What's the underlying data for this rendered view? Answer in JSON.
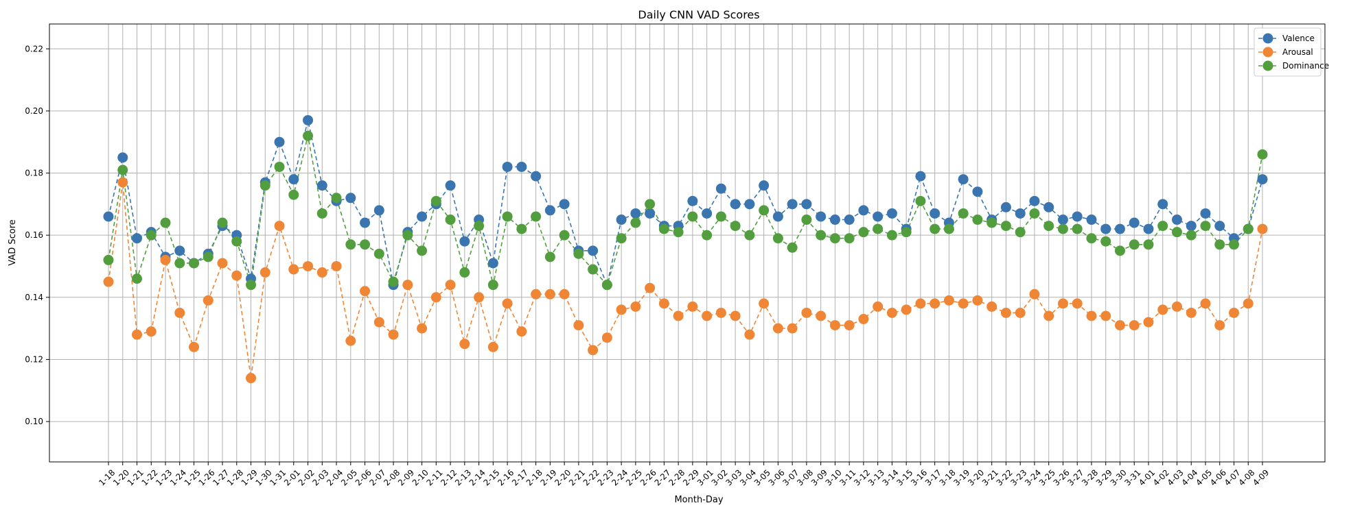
{
  "chart_data": {
    "type": "line",
    "title": "Daily CNN VAD Scores",
    "xlabel": "Month-Day",
    "ylabel": "VAD Score",
    "ylim": [
      0.087,
      0.228
    ],
    "yticks": [
      0.1,
      0.12,
      0.14,
      0.16,
      0.18,
      0.2,
      0.22
    ],
    "ytick_labels": [
      "0.10",
      "0.12",
      "0.14",
      "0.16",
      "0.18",
      "0.20",
      "0.22"
    ],
    "grid": true,
    "legend_position": "top-right",
    "line_style": "dashed",
    "marker": "circle",
    "categories": [
      "1-18",
      "1-20",
      "1-21",
      "1-22",
      "1-23",
      "1-24",
      "1-25",
      "1-26",
      "1-27",
      "1-28",
      "1-29",
      "1-30",
      "1-31",
      "2-01",
      "2-02",
      "2-03",
      "2-04",
      "2-05",
      "2-06",
      "2-07",
      "2-08",
      "2-09",
      "2-10",
      "2-11",
      "2-12",
      "2-13",
      "2-14",
      "2-15",
      "2-16",
      "2-17",
      "2-18",
      "2-19",
      "2-20",
      "2-21",
      "2-22",
      "2-23",
      "2-24",
      "2-25",
      "2-26",
      "2-27",
      "2-28",
      "2-29",
      "3-01",
      "3-02",
      "3-03",
      "3-04",
      "3-05",
      "3-06",
      "3-07",
      "3-08",
      "3-09",
      "3-10",
      "3-11",
      "3-12",
      "3-13",
      "3-14",
      "3-15",
      "3-16",
      "3-17",
      "3-18",
      "3-19",
      "3-20",
      "3-21",
      "3-22",
      "3-23",
      "3-24",
      "3-25",
      "3-26",
      "3-27",
      "3-28",
      "3-29",
      "3-30",
      "3-31",
      "4-01",
      "4-02",
      "4-03",
      "4-04",
      "4-05",
      "4-06",
      "4-07",
      "4-08",
      "4-09"
    ],
    "series": [
      {
        "name": "Valence",
        "color": "#3a75b0",
        "values": [
          0.166,
          0.185,
          0.159,
          0.161,
          0.153,
          0.155,
          0.151,
          0.154,
          0.163,
          0.16,
          0.146,
          0.177,
          0.19,
          0.178,
          0.197,
          0.176,
          0.171,
          0.172,
          0.164,
          0.168,
          0.144,
          0.161,
          0.166,
          0.17,
          0.176,
          0.158,
          0.165,
          0.151,
          0.182,
          0.182,
          0.179,
          0.168,
          0.17,
          0.155,
          0.155,
          0.144,
          0.165,
          0.167,
          0.167,
          0.163,
          0.163,
          0.171,
          0.167,
          0.175,
          0.17,
          0.17,
          0.176,
          0.166,
          0.17,
          0.17,
          0.166,
          0.165,
          0.165,
          0.168,
          0.166,
          0.167,
          0.162,
          0.179,
          0.167,
          0.164,
          0.178,
          0.174,
          0.165,
          0.169,
          0.167,
          0.171,
          0.169,
          0.165,
          0.166,
          0.165,
          0.162,
          0.162,
          0.164,
          0.162,
          0.17,
          0.165,
          0.163,
          0.167,
          0.163,
          0.159,
          0.162,
          0.178
        ]
      },
      {
        "name": "Arousal",
        "color": "#ef8636",
        "values": [
          0.145,
          0.177,
          0.128,
          0.129,
          0.152,
          0.135,
          0.124,
          0.139,
          0.151,
          0.147,
          0.114,
          0.148,
          0.163,
          0.149,
          0.15,
          0.148,
          0.15,
          0.126,
          0.142,
          0.132,
          0.128,
          0.144,
          0.13,
          0.14,
          0.144,
          0.125,
          0.14,
          0.124,
          0.138,
          0.129,
          0.141,
          0.141,
          0.141,
          0.131,
          0.123,
          0.127,
          0.136,
          0.137,
          0.143,
          0.138,
          0.134,
          0.137,
          0.134,
          0.135,
          0.134,
          0.128,
          0.138,
          0.13,
          0.13,
          0.135,
          0.134,
          0.131,
          0.131,
          0.133,
          0.137,
          0.135,
          0.136,
          0.138,
          0.138,
          0.139,
          0.138,
          0.139,
          0.137,
          0.135,
          0.135,
          0.141,
          0.134,
          0.138,
          0.138,
          0.134,
          0.134,
          0.131,
          0.131,
          0.132,
          0.136,
          0.137,
          0.135,
          0.138,
          0.131,
          0.135,
          0.138,
          0.162
        ]
      },
      {
        "name": "Dominance",
        "color": "#529e3f",
        "values": [
          0.152,
          0.181,
          0.146,
          0.16,
          0.164,
          0.151,
          0.151,
          0.153,
          0.164,
          0.158,
          0.144,
          0.176,
          0.182,
          0.173,
          0.192,
          0.167,
          0.172,
          0.157,
          0.157,
          0.154,
          0.145,
          0.16,
          0.155,
          0.171,
          0.165,
          0.148,
          0.163,
          0.144,
          0.166,
          0.162,
          0.166,
          0.153,
          0.16,
          0.154,
          0.149,
          0.144,
          0.159,
          0.164,
          0.17,
          0.162,
          0.161,
          0.166,
          0.16,
          0.166,
          0.163,
          0.16,
          0.168,
          0.159,
          0.156,
          0.165,
          0.16,
          0.159,
          0.159,
          0.161,
          0.162,
          0.16,
          0.161,
          0.171,
          0.162,
          0.162,
          0.167,
          0.165,
          0.164,
          0.163,
          0.161,
          0.167,
          0.163,
          0.162,
          0.162,
          0.159,
          0.158,
          0.155,
          0.157,
          0.157,
          0.163,
          0.161,
          0.16,
          0.163,
          0.157,
          0.157,
          0.162,
          0.186
        ]
      }
    ]
  }
}
